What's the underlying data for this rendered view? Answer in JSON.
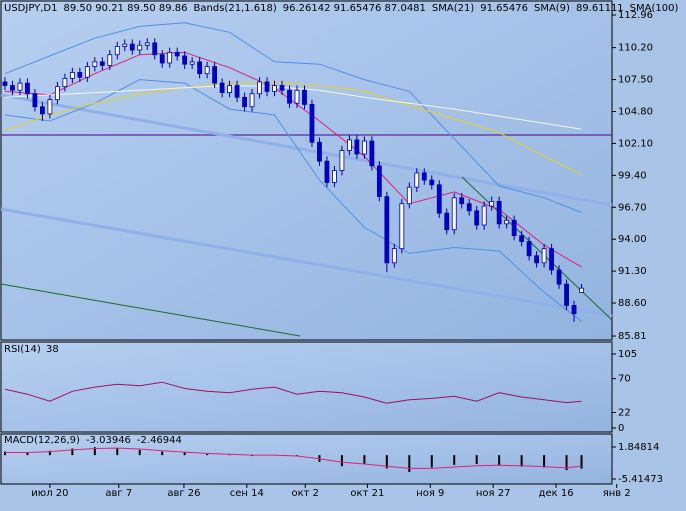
{
  "header": [
    {
      "text": "USDJPY,D1",
      "color": "#000000"
    },
    {
      "text": "89.50 90.21 89.50 89.86",
      "color": "#000066"
    },
    {
      "text": "Bands(21,1.618)",
      "color": "#000000"
    },
    {
      "text": "96.26142 91.65476 87.0481",
      "color": "#5a8fe0"
    },
    {
      "text": "SMA(21)",
      "color": "#000000"
    },
    {
      "text": "91.65476",
      "color": "#c8006e"
    },
    {
      "text": "SMA(9)",
      "color": "#000000"
    },
    {
      "text": "89.61111",
      "color": "#c8a800"
    },
    {
      "text": "SMA(100)",
      "color": "#000000"
    }
  ],
  "chart_data": [
    {
      "type": "candlestick",
      "up_color": "#ffffff",
      "down_color": "#0000cc",
      "ylim": [
        85.56,
        114.06
      ],
      "xlim": [
        -0.53,
        81.07
      ],
      "yticks": [
        {
          "value": 112.96,
          "label": "112.96"
        },
        {
          "value": 110.2,
          "label": "110.20"
        },
        {
          "value": 107.5,
          "label": "107.50"
        },
        {
          "value": 104.8,
          "label": "104.80"
        },
        {
          "value": 102.1,
          "label": "102.10"
        },
        {
          "value": 99.4,
          "label": "99.40"
        },
        {
          "value": 96.7,
          "label": "96.70"
        },
        {
          "value": 94,
          "label": "94.00"
        },
        {
          "value": 91.3,
          "label": "91.30"
        },
        {
          "value": 88.6,
          "label": "88.60"
        },
        {
          "value": 85.81,
          "label": "85.81"
        }
      ],
      "xticks": [
        {
          "value": 6,
          "label": "июл 20"
        },
        {
          "value": 15.2,
          "label": "авг 7"
        },
        {
          "value": 23.9,
          "label": "авг 26"
        },
        {
          "value": 32.3,
          "label": "сен 14"
        },
        {
          "value": 40.1,
          "label": "окт 2"
        },
        {
          "value": 48.4,
          "label": "окт 21"
        },
        {
          "value": 56.8,
          "label": "ноя 9"
        },
        {
          "value": 65.2,
          "label": "ноя 27"
        },
        {
          "value": 73.6,
          "label": "дек 16"
        },
        {
          "value": 81.7,
          "label": "янв 2"
        }
      ],
      "candles": [
        [
          107.3,
          107.7,
          106.6,
          107.0
        ],
        [
          107.0,
          107.4,
          106.2,
          106.6
        ],
        [
          106.6,
          107.6,
          106.2,
          107.2
        ],
        [
          107.2,
          107.6,
          105.9,
          106.3
        ],
        [
          106.3,
          106.7,
          104.8,
          105.2
        ],
        [
          105.2,
          105.6,
          104.0,
          104.6
        ],
        [
          104.6,
          106.2,
          104.2,
          105.8
        ],
        [
          105.8,
          107.3,
          105.4,
          106.9
        ],
        [
          106.9,
          108.0,
          106.5,
          107.6
        ],
        [
          107.6,
          108.5,
          107.2,
          108.1
        ],
        [
          108.1,
          108.5,
          107.3,
          107.7
        ],
        [
          107.7,
          109.0,
          107.3,
          108.6
        ],
        [
          108.6,
          109.4,
          108.2,
          109.0
        ],
        [
          109.0,
          109.4,
          108.3,
          108.7
        ],
        [
          108.7,
          110.0,
          108.3,
          109.6
        ],
        [
          109.6,
          110.7,
          109.2,
          110.3
        ],
        [
          110.3,
          110.9,
          109.9,
          110.5
        ],
        [
          110.5,
          110.9,
          109.6,
          110.0
        ],
        [
          110.0,
          110.8,
          109.6,
          110.4
        ],
        [
          110.4,
          111.0,
          110.0,
          110.6
        ],
        [
          110.6,
          111.0,
          109.2,
          109.6
        ],
        [
          109.6,
          110.0,
          108.5,
          108.9
        ],
        [
          108.9,
          110.2,
          108.5,
          109.8
        ],
        [
          109.8,
          110.2,
          109.1,
          109.5
        ],
        [
          109.5,
          109.9,
          108.4,
          108.8
        ],
        [
          108.8,
          109.4,
          108.4,
          109.0
        ],
        [
          109.0,
          109.4,
          107.6,
          108.0
        ],
        [
          108.0,
          109.0,
          107.6,
          108.6
        ],
        [
          108.6,
          109.0,
          106.8,
          107.2
        ],
        [
          107.2,
          107.6,
          106.0,
          106.4
        ],
        [
          106.4,
          107.4,
          106.0,
          107.0
        ],
        [
          107.0,
          107.4,
          105.6,
          106.0
        ],
        [
          106.0,
          106.4,
          104.8,
          105.2
        ],
        [
          105.2,
          106.7,
          104.8,
          106.3
        ],
        [
          106.3,
          107.7,
          105.9,
          107.3
        ],
        [
          107.3,
          107.7,
          106.1,
          106.5
        ],
        [
          106.5,
          107.4,
          106.1,
          107.0
        ],
        [
          107.0,
          107.4,
          106.2,
          106.6
        ],
        [
          106.6,
          107.0,
          105.1,
          105.5
        ],
        [
          105.5,
          107.0,
          105.1,
          106.6
        ],
        [
          106.6,
          107.0,
          105.0,
          105.4
        ],
        [
          105.4,
          105.8,
          101.8,
          102.2
        ],
        [
          102.2,
          102.6,
          100.2,
          100.6
        ],
        [
          100.6,
          101.0,
          98.4,
          98.8
        ],
        [
          98.8,
          100.2,
          98.4,
          99.8
        ],
        [
          99.8,
          101.9,
          99.4,
          101.5
        ],
        [
          101.5,
          102.8,
          101.1,
          102.4
        ],
        [
          102.4,
          102.8,
          100.8,
          101.2
        ],
        [
          101.2,
          102.7,
          100.8,
          102.3
        ],
        [
          102.3,
          102.7,
          99.8,
          100.2
        ],
        [
          100.2,
          100.6,
          97.2,
          97.6
        ],
        [
          97.6,
          98.0,
          91.2,
          92.0
        ],
        [
          92.0,
          93.6,
          91.6,
          93.2
        ],
        [
          93.2,
          97.4,
          92.8,
          97.0
        ],
        [
          97.0,
          98.8,
          96.6,
          98.4
        ],
        [
          98.4,
          100.0,
          98.0,
          99.6
        ],
        [
          99.6,
          100.0,
          98.6,
          99.0
        ],
        [
          99.0,
          99.4,
          98.2,
          98.6
        ],
        [
          98.6,
          99.0,
          95.8,
          96.2
        ],
        [
          96.2,
          96.6,
          94.4,
          94.8
        ],
        [
          94.8,
          97.9,
          94.4,
          97.5
        ],
        [
          97.5,
          97.9,
          96.6,
          97.0
        ],
        [
          97.0,
          97.4,
          96.0,
          96.4
        ],
        [
          96.4,
          96.8,
          94.8,
          95.2
        ],
        [
          95.2,
          97.2,
          94.8,
          96.8
        ],
        [
          96.8,
          97.6,
          96.4,
          97.2
        ],
        [
          97.2,
          97.6,
          94.9,
          95.3
        ],
        [
          95.3,
          96.0,
          94.9,
          95.6
        ],
        [
          95.6,
          96.0,
          93.9,
          94.3
        ],
        [
          94.3,
          94.7,
          93.4,
          93.8
        ],
        [
          93.8,
          94.2,
          92.2,
          92.6
        ],
        [
          92.6,
          93.0,
          91.6,
          92.0
        ],
        [
          92.0,
          93.6,
          91.6,
          93.2
        ],
        [
          93.2,
          93.6,
          91.0,
          91.4
        ],
        [
          91.4,
          91.8,
          89.8,
          90.2
        ],
        [
          90.2,
          90.6,
          88.0,
          88.4
        ],
        [
          88.4,
          88.8,
          87.0,
          87.7
        ],
        [
          89.5,
          90.21,
          89.5,
          89.86
        ]
      ],
      "lines": [
        {
          "color": "#4f8fe8",
          "x": [
            0,
            6,
            12,
            18,
            24,
            30,
            36,
            42,
            48,
            54,
            60,
            66,
            72,
            77
          ],
          "values": [
            108.0,
            109.5,
            111.0,
            112.0,
            112.3,
            111.5,
            109.0,
            108.8,
            107.5,
            106.5,
            102.5,
            98.5,
            97.5,
            96.26142
          ]
        },
        {
          "color": "#4f8fe8",
          "x": [
            0,
            6,
            12,
            18,
            24,
            30,
            36,
            42,
            48,
            54,
            60,
            66,
            72,
            77
          ],
          "values": [
            104.5,
            104.0,
            105.5,
            107.5,
            107.2,
            105.0,
            104.5,
            99.0,
            95.0,
            92.8,
            93.3,
            93.0,
            89.5,
            87.0481
          ]
        },
        {
          "color": "#e0207a",
          "x": [
            0,
            6,
            12,
            18,
            24,
            30,
            36,
            42,
            48,
            54,
            60,
            66,
            72,
            77
          ],
          "values": [
            106.5,
            106.2,
            108.0,
            109.6,
            109.8,
            108.5,
            106.8,
            104.0,
            101.0,
            97.0,
            98.0,
            96.5,
            93.5,
            91.65476
          ]
        },
        {
          "color": "#e8d020",
          "x": [
            0,
            6,
            12,
            18,
            24,
            30,
            36,
            42,
            48,
            54,
            60,
            66,
            72,
            77
          ],
          "values": [
            103.2,
            104.5,
            105.5,
            106.3,
            106.8,
            107.2,
            107.3,
            107.0,
            106.5,
            105.3,
            104.2,
            103.0,
            101.0,
            99.5
          ]
        },
        {
          "color": "#f4f4f4",
          "x": [
            0,
            6,
            12,
            18,
            24,
            30,
            36,
            42,
            48,
            54,
            60,
            66,
            72,
            77
          ],
          "values": [
            106.0,
            106.2,
            106.4,
            106.6,
            106.8,
            107.0,
            106.9,
            106.6,
            106.0,
            105.5,
            105.0,
            104.4,
            103.8,
            103.3
          ]
        }
      ]
    },
    {
      "type": "line",
      "title": "RSI(14)",
      "value_text": "38",
      "color": "#a0105a",
      "ylim": [
        -4.3,
        120.6
      ],
      "xlim": [
        -0.53,
        81.07
      ],
      "yticks": [
        105,
        70,
        22,
        0
      ],
      "x": [
        0,
        3,
        6,
        9,
        12,
        15,
        18,
        21,
        24,
        27,
        30,
        33,
        36,
        39,
        42,
        45,
        48,
        51,
        54,
        57,
        60,
        63,
        66,
        69,
        72,
        75,
        77
      ],
      "values": [
        55,
        48,
        38,
        52,
        58,
        62,
        60,
        65,
        56,
        52,
        50,
        55,
        58,
        48,
        52,
        50,
        44,
        35,
        40,
        42,
        45,
        38,
        50,
        44,
        40,
        36,
        38
      ]
    },
    {
      "type": "macd",
      "title": "MACD(12,26,9)",
      "value_texts": [
        "-3.03946",
        "-2.46944"
      ],
      "hist_color": "#000000",
      "signal_color": "#e0207a",
      "ylim": [
        -6.32,
        4.57
      ],
      "xlim": [
        -0.53,
        81.07
      ],
      "yticks": [
        1.84814,
        -5.41473
      ],
      "x": [
        0,
        3,
        6,
        9,
        12,
        15,
        18,
        21,
        24,
        27,
        30,
        33,
        36,
        39,
        42,
        45,
        48,
        51,
        54,
        57,
        60,
        63,
        66,
        69,
        72,
        75,
        77
      ],
      "hist": [
        0.8,
        0.5,
        1.0,
        1.5,
        1.8,
        1.6,
        1.2,
        0.8,
        0.6,
        0.3,
        0.1,
        -0.2,
        0,
        -0.3,
        -1.5,
        -2.5,
        -2.0,
        -3.0,
        -3.8,
        -2.8,
        -2.2,
        -2.0,
        -2.3,
        -2.6,
        -2.8,
        -3.4,
        -3.03946
      ],
      "signal": [
        0.6,
        0.6,
        0.8,
        1.2,
        1.5,
        1.6,
        1.4,
        1.0,
        0.7,
        0.4,
        0.2,
        0,
        0,
        -0.2,
        -0.8,
        -1.6,
        -2.0,
        -2.5,
        -3.0,
        -3.0,
        -2.7,
        -2.4,
        -2.3,
        -2.4,
        -2.6,
        -2.9,
        -2.46944
      ]
    }
  ]
}
